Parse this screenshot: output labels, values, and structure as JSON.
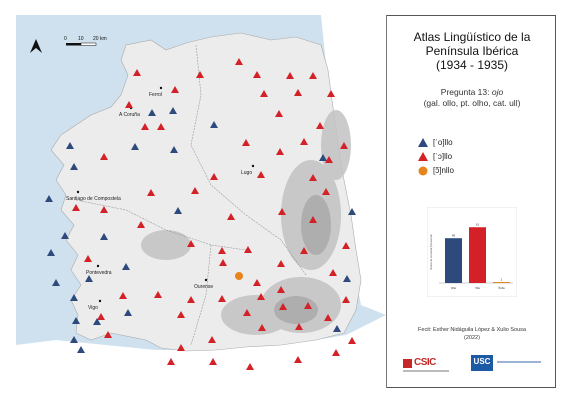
{
  "title_lines": [
    "Atlas Lingüístico de la",
    "Península Ibérica",
    "(1934 - 1935)"
  ],
  "question": {
    "line1_prefix": "Pregunta 13: ",
    "line1_word": "ojo",
    "line2": "(gal. ollo, pt. olho, cat. ull)"
  },
  "legend": [
    {
      "label": "[ˈo]llo",
      "symbol": "triangle",
      "color": "#2e4a7d"
    },
    {
      "label": "[ˈɔ]llo",
      "symbol": "triangle",
      "color": "#d42128"
    },
    {
      "label": "[ɔ̃]nllo",
      "symbol": "circle",
      "color": "#e8841c"
    }
  ],
  "scale": {
    "ticks": [
      "0",
      "10",
      "20 km"
    ]
  },
  "north_arrow": "A",
  "cities": [
    "Ferrol",
    "A Coruña",
    "Lugo",
    "Santiago de Compostela",
    "Pontevedra",
    "Ourense",
    "Vigo"
  ],
  "chart_data": {
    "type": "bar",
    "categories": [
      "Ollo",
      "Ɔllo",
      "Ɔ̃nllo"
    ],
    "values": [
      49,
      61,
      1
    ],
    "colors": [
      "#2e4a7d",
      "#d42128",
      "#e8841c"
    ],
    "ylabel": "Puntos de encuesta (frecuencia)",
    "ylim": [
      0,
      70
    ]
  },
  "credit": [
    "Fecit: Esther Nidáguila López & Xulio Sousa",
    "(2022)"
  ],
  "logos": {
    "csic": "CSIC",
    "usc": "USC"
  },
  "colors": {
    "sea": "#cfe1ee",
    "land": "#ececec",
    "relief": "#b9b9b9",
    "portugal": "#ffffff"
  }
}
